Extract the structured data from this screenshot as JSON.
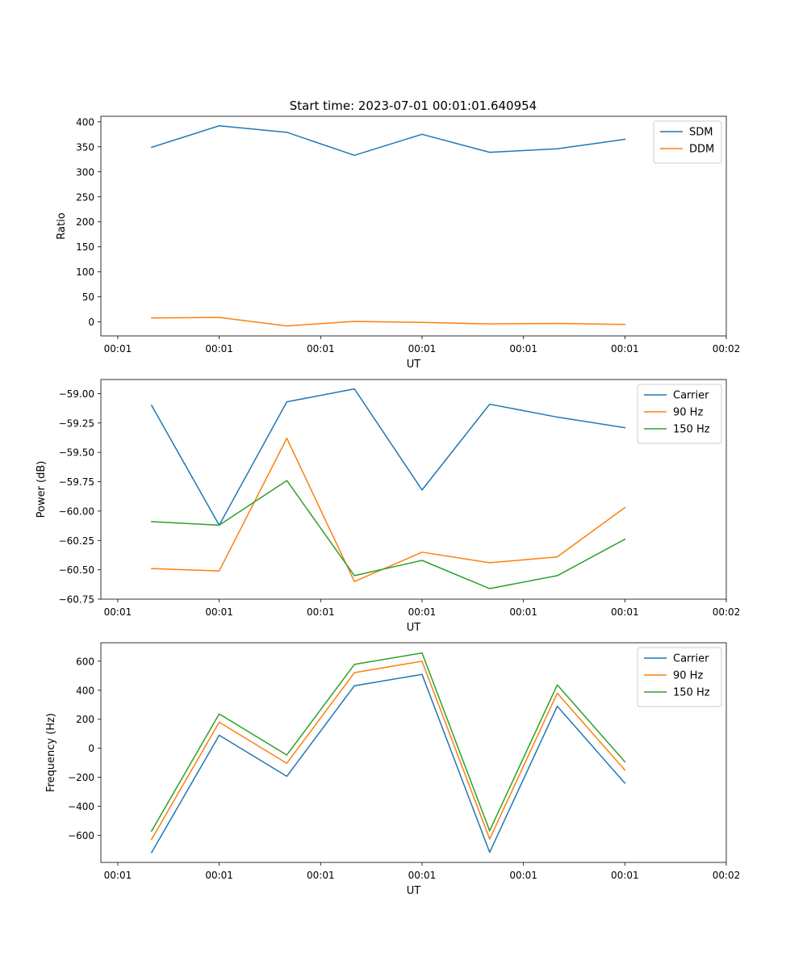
{
  "figure": {
    "title": "Start time: 2023-07-01 00:01:01.640954"
  },
  "chart_data": [
    {
      "type": "line",
      "title": "Start time: 2023-07-01 00:01:01.640954",
      "xlabel": "UT",
      "ylabel": "Ratio",
      "x": [
        0.5,
        1.5,
        2.5,
        3.5,
        4.5,
        5.5,
        6.5,
        7.5
      ],
      "xlim": [
        -0.25,
        9.0
      ],
      "xticks": [
        0,
        1.5,
        3,
        4.5,
        6,
        7.5,
        9
      ],
      "xtick_labels": [
        "00:01",
        "00:01",
        "00:01",
        "00:01",
        "00:01",
        "00:01",
        "00:02"
      ],
      "ylim": [
        -28,
        411
      ],
      "yticks": [
        0,
        50,
        100,
        150,
        200,
        250,
        300,
        350,
        400
      ],
      "ytick_labels": [
        "0",
        "50",
        "100",
        "150",
        "200",
        "250",
        "300",
        "350",
        "400"
      ],
      "grid": false,
      "legend": "upper right",
      "series": [
        {
          "name": "SDM",
          "color": "#1f77b4",
          "values": [
            349,
            392,
            379,
            333,
            375,
            339,
            346,
            365
          ]
        },
        {
          "name": "DDM",
          "color": "#ff7f0e",
          "values": [
            8,
            9,
            -8,
            1,
            -1,
            -4,
            -3,
            -5
          ]
        }
      ]
    },
    {
      "type": "line",
      "title": "",
      "xlabel": "UT",
      "ylabel": "Power (dB)",
      "x": [
        0.5,
        1.5,
        2.5,
        3.5,
        4.5,
        5.5,
        6.5,
        7.5
      ],
      "xlim": [
        -0.25,
        9.0
      ],
      "xticks": [
        0,
        1.5,
        3,
        4.5,
        6,
        7.5,
        9
      ],
      "xtick_labels": [
        "00:01",
        "00:01",
        "00:01",
        "00:01",
        "00:01",
        "00:01",
        "00:02"
      ],
      "ylim": [
        -60.75,
        -58.88
      ],
      "yticks": [
        -60.75,
        -60.5,
        -60.25,
        -60.0,
        -59.75,
        -59.5,
        -59.25,
        -59.0
      ],
      "ytick_labels": [
        "−60.75",
        "−60.50",
        "−60.25",
        "−60.00",
        "−59.75",
        "−59.50",
        "−59.25",
        "−59.00"
      ],
      "grid": false,
      "legend": "upper right",
      "series": [
        {
          "name": "Carrier",
          "color": "#1f77b4",
          "values": [
            -59.1,
            -60.12,
            -59.07,
            -58.96,
            -59.82,
            -59.09,
            -59.2,
            -59.29
          ]
        },
        {
          "name": "90 Hz",
          "color": "#ff7f0e",
          "values": [
            -60.49,
            -60.51,
            -59.38,
            -60.6,
            -60.35,
            -60.44,
            -60.39,
            -59.97
          ]
        },
        {
          "name": "150 Hz",
          "color": "#2ca02c",
          "values": [
            -60.09,
            -60.12,
            -59.74,
            -60.55,
            -60.42,
            -60.66,
            -60.55,
            -60.24
          ]
        }
      ]
    },
    {
      "type": "line",
      "title": "",
      "xlabel": "UT",
      "ylabel": "Frequency (Hz)",
      "x": [
        0.5,
        1.5,
        2.5,
        3.5,
        4.5,
        5.5,
        6.5,
        7.5
      ],
      "xlim": [
        -0.25,
        9.0
      ],
      "xticks": [
        0,
        1.5,
        3,
        4.5,
        6,
        7.5,
        9
      ],
      "xtick_labels": [
        "00:01",
        "00:01",
        "00:01",
        "00:01",
        "00:01",
        "00:01",
        "00:02"
      ],
      "ylim": [
        -786,
        727
      ],
      "yticks": [
        -600,
        -400,
        -200,
        0,
        200,
        400,
        600
      ],
      "ytick_labels": [
        "−600",
        "−400",
        "−200",
        "0",
        "200",
        "400",
        "600"
      ],
      "grid": false,
      "legend": "upper right",
      "series": [
        {
          "name": "Carrier",
          "color": "#1f77b4",
          "values": [
            -718,
            90,
            -193,
            431,
            509,
            -716,
            290,
            -240
          ]
        },
        {
          "name": "90 Hz",
          "color": "#ff7f0e",
          "values": [
            -627,
            180,
            -103,
            521,
            600,
            -625,
            380,
            -150
          ]
        },
        {
          "name": "150 Hz",
          "color": "#2ca02c",
          "values": [
            -570,
            237,
            -46,
            578,
            657,
            -568,
            437,
            -93
          ]
        }
      ]
    }
  ]
}
